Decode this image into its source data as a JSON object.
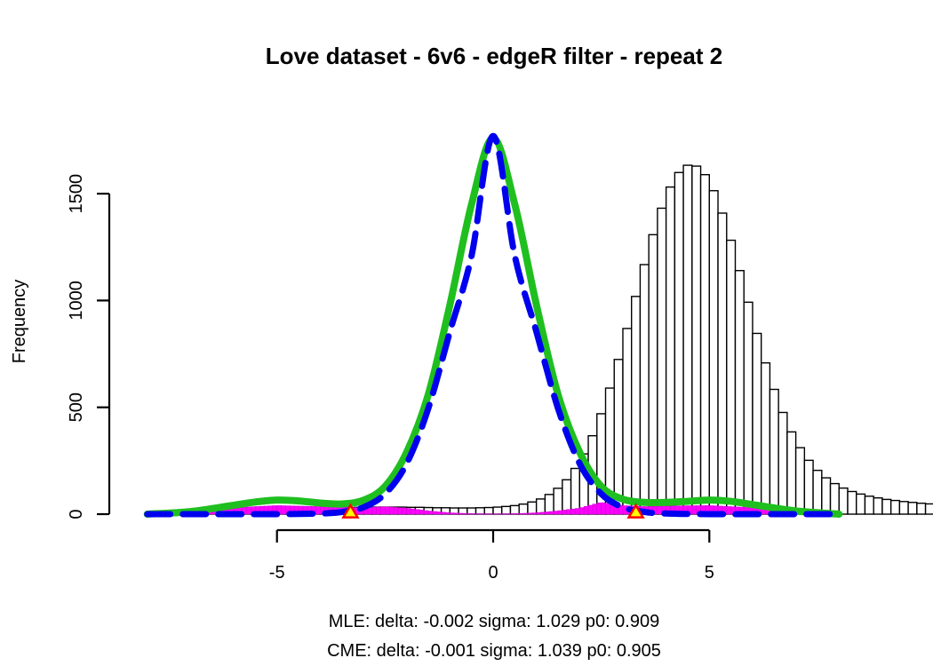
{
  "chart_data": {
    "type": "histogram",
    "title": "Love dataset - 6v6 - edgeR filter - repeat 2",
    "xlabel": "",
    "ylabel": "Frequency",
    "xlim": [
      -8.2,
      8.2
    ],
    "ylim": [
      0,
      1800
    ],
    "x_ticks": [
      -5,
      0,
      5
    ],
    "x_tick_labels": [
      "-5",
      "0",
      "5"
    ],
    "y_ticks": [
      0,
      500,
      1000,
      1500
    ],
    "y_tick_labels": [
      "0",
      "500",
      "1000",
      "1500"
    ],
    "bin_width": 0.2,
    "histogram": {
      "bin_start": -8.0,
      "counts": [
        0,
        0,
        0,
        1,
        1,
        2,
        3,
        4,
        5,
        7,
        9,
        11,
        13,
        15,
        17,
        19,
        21,
        22,
        24,
        26,
        27,
        29,
        30,
        31,
        32,
        33,
        33,
        33,
        33,
        33,
        32,
        32,
        31,
        30,
        30,
        29,
        29,
        29,
        30,
        31,
        33,
        36,
        40,
        47,
        57,
        71,
        92,
        121,
        161,
        214,
        282,
        367,
        470,
        590,
        724,
        869,
        1019,
        1168,
        1308,
        1432,
        1531,
        1599,
        1633,
        1629,
        1589,
        1514,
        1409,
        1282,
        1140,
        992,
        846,
        708,
        584,
        476,
        385,
        311,
        252,
        205,
        170,
        143,
        122,
        106,
        94,
        84,
        76,
        69,
        64,
        59,
        55,
        51,
        48,
        46,
        43,
        41,
        38,
        36,
        34,
        32,
        31,
        29,
        27,
        26,
        24,
        22,
        20,
        18,
        16,
        14,
        11,
        9,
        7,
        5,
        4,
        3,
        2,
        1,
        0,
        0,
        0,
        0
      ]
    },
    "series": [
      {
        "name": "",
        "kind": "null_fit_dashed",
        "color": "#0000ee",
        "x": [
          -8.0,
          -7.0,
          -6.0,
          -5.0,
          -4.0,
          -3.5,
          -3.0,
          -2.5,
          -2.0,
          -1.5,
          -1.0,
          -0.5,
          0.0,
          0.5,
          1.0,
          1.5,
          2.0,
          2.5,
          3.0,
          3.5,
          4.0,
          5.0,
          6.0,
          7.0,
          8.0
        ],
        "y": [
          0,
          0,
          0,
          0,
          3,
          10,
          32,
          95,
          237,
          495,
          854,
          1209,
          1770,
          1209,
          854,
          495,
          237,
          95,
          32,
          10,
          3,
          0,
          0,
          0,
          0
        ]
      },
      {
        "name": "",
        "kind": "density_fit_solid",
        "color": "#1fbf1f",
        "x": [
          -8.0,
          -7.0,
          -6.0,
          -5.5,
          -5.0,
          -4.5,
          -4.0,
          -3.5,
          -3.0,
          -2.5,
          -2.0,
          -1.5,
          -1.0,
          -0.5,
          0.0,
          0.5,
          1.0,
          1.5,
          2.0,
          2.5,
          3.0,
          3.5,
          4.0,
          4.5,
          5.0,
          5.5,
          6.0,
          7.0,
          8.0
        ],
        "y": [
          0,
          12,
          42,
          57,
          66,
          62,
          52,
          48,
          65,
          130,
          290,
          560,
          980,
          1450,
          1760,
          1450,
          980,
          560,
          290,
          130,
          70,
          55,
          55,
          60,
          66,
          60,
          45,
          15,
          0
        ]
      },
      {
        "name": "",
        "kind": "nonnull_histogram",
        "color": "#ff00ff",
        "x": [
          -7.0,
          -6.0,
          -5.0,
          -4.0,
          -3.5,
          -3.0,
          -2.5,
          -2.0,
          -1.5,
          -1.0,
          -0.5,
          0.0,
          0.5,
          1.0,
          1.5,
          2.0,
          2.5,
          3.0,
          3.5,
          4.0,
          5.0,
          6.0,
          7.0
        ],
        "y": [
          10,
          30,
          40,
          35,
          32,
          30,
          35,
          28,
          15,
          6,
          2,
          1,
          2,
          6,
          15,
          28,
          55,
          40,
          35,
          38,
          40,
          30,
          10
        ]
      }
    ],
    "markers": [
      {
        "x": -3.3,
        "y": 0,
        "shape": "triangle",
        "fill": "#ffff00",
        "stroke": "#ff0000"
      },
      {
        "x": 3.3,
        "y": 0,
        "shape": "triangle",
        "fill": "#ffff00",
        "stroke": "#ff0000"
      }
    ],
    "footer_lines": [
      "MLE: delta: -0.002 sigma: 1.029 p0: 0.909",
      "CME: delta: -0.001 sigma: 1.039 p0: 0.905"
    ]
  }
}
